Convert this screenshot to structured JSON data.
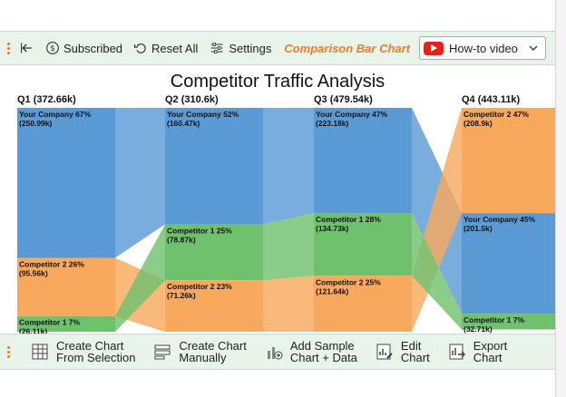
{
  "toolbar": {
    "subscribed_label": "Subscribed",
    "reset_label": "Reset All",
    "settings_label": "Settings",
    "brand_label": "Comparison Bar Chart",
    "howto_label": "How-to video"
  },
  "bottombar": {
    "create_selection_line1": "Create Chart",
    "create_selection_line2": "From Selection",
    "create_manual_line1": "Create Chart",
    "create_manual_line2": "Manually",
    "add_sample_line1": "Add Sample",
    "add_sample_line2": "Chart + Data",
    "edit_line1": "Edit",
    "edit_line2": "Chart",
    "export_line1": "Export",
    "export_line2": "Chart"
  },
  "colors": {
    "your_company": "#5b9bd5",
    "competitor_1": "#70c16e",
    "competitor_2": "#f8a95d",
    "accent": "#f07d2a"
  },
  "chart_data": {
    "type": "bar",
    "title": "Competitor Traffic Analysis",
    "categories": [
      "Q1",
      "Q2",
      "Q3",
      "Q4"
    ],
    "category_labels": [
      "Q1 (372.66k)",
      "Q2 (310.6k)",
      "Q3 (479.54k)",
      "Q4 (443.11k)"
    ],
    "totals": [
      "372.66k",
      "310.6k",
      "479.54k",
      "443.11k"
    ],
    "series": [
      {
        "name": "Your Company",
        "color": "#5b9bd5",
        "percents": [
          67,
          52,
          47,
          45
        ],
        "value_labels": [
          "250.99k",
          "160.47k",
          "223.18k",
          "201.5k"
        ]
      },
      {
        "name": "Competitor 2",
        "color": "#f8a95d",
        "percents": [
          26,
          23,
          25,
          47
        ],
        "value_labels": [
          "95.56k",
          "71.26k",
          "121.64k",
          "208.9k"
        ]
      },
      {
        "name": "Competitor 1",
        "color": "#70c16e",
        "percents": [
          7,
          25,
          28,
          7
        ],
        "value_labels": [
          "26.11k",
          "78.87k",
          "134.73k",
          "32.71k"
        ]
      }
    ],
    "stack_order": [
      [
        "Your Company",
        "Competitor 2",
        "Competitor 1"
      ],
      [
        "Your Company",
        "Competitor 1",
        "Competitor 2"
      ],
      [
        "Your Company",
        "Competitor 1",
        "Competitor 2"
      ],
      [
        "Competitor 2",
        "Your Company",
        "Competitor 1"
      ]
    ],
    "ylim": [
      0,
      100
    ]
  }
}
